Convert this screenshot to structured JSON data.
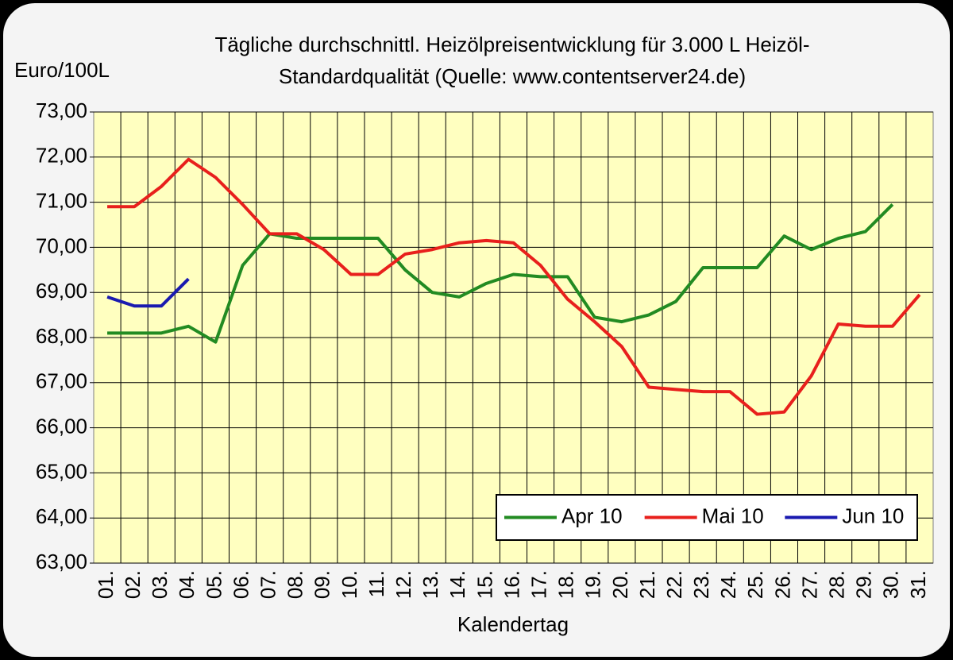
{
  "chart_data": {
    "type": "line",
    "title": [
      "Tägliche durchschnittl. Heizölpreisentwicklung für 3.000 L Heizöl-",
      "Standardqualität (Quelle: www.contentserver24.de)"
    ],
    "y_label": "Euro/100L",
    "x_label": "Kalendertag",
    "categories": [
      "01.",
      "02.",
      "03.",
      "04.",
      "05.",
      "06.",
      "07.",
      "08.",
      "09.",
      "10.",
      "11.",
      "12.",
      "13.",
      "14.",
      "15.",
      "16.",
      "17.",
      "18.",
      "19.",
      "20.",
      "21.",
      "22.",
      "23.",
      "24.",
      "25.",
      "26.",
      "27.",
      "28.",
      "29.",
      "30.",
      "31."
    ],
    "series": [
      {
        "name": "Apr 10",
        "color": "#228b22",
        "values": [
          68.1,
          68.1,
          68.1,
          68.25,
          67.9,
          69.6,
          70.3,
          70.2,
          70.2,
          70.2,
          70.2,
          69.5,
          69.0,
          68.9,
          69.2,
          69.4,
          69.35,
          69.35,
          68.45,
          68.35,
          68.5,
          68.8,
          69.55,
          69.55,
          69.55,
          70.25,
          69.95,
          70.2,
          70.35,
          70.95,
          null
        ]
      },
      {
        "name": "Mai 10",
        "color": "#e8201c",
        "values": [
          70.9,
          70.9,
          71.35,
          71.95,
          71.55,
          70.95,
          70.3,
          70.3,
          69.95,
          69.4,
          69.4,
          69.85,
          69.95,
          70.1,
          70.15,
          70.1,
          69.6,
          68.85,
          68.35,
          67.8,
          66.9,
          66.85,
          66.8,
          66.8,
          66.3,
          66.35,
          67.15,
          68.3,
          68.25,
          68.25,
          68.95
        ]
      },
      {
        "name": "Jun 10",
        "color": "#1a1ab0",
        "values": [
          68.9,
          68.7,
          68.7,
          69.3,
          null,
          null,
          null,
          null,
          null,
          null,
          null,
          null,
          null,
          null,
          null,
          null,
          null,
          null,
          null,
          null,
          null,
          null,
          null,
          null,
          null,
          null,
          null,
          null,
          null,
          null,
          null
        ]
      }
    ],
    "ylim": [
      63,
      73
    ],
    "yticks": [
      {
        "value": 63,
        "label": "63,00"
      },
      {
        "value": 64,
        "label": "64,00"
      },
      {
        "value": 65,
        "label": "65,00"
      },
      {
        "value": 66,
        "label": "66,00"
      },
      {
        "value": 67,
        "label": "67,00"
      },
      {
        "value": 68,
        "label": "68,00"
      },
      {
        "value": 69,
        "label": "69,00"
      },
      {
        "value": 70,
        "label": "70,00"
      },
      {
        "value": 71,
        "label": "71,00"
      },
      {
        "value": 72,
        "label": "72,00"
      },
      {
        "value": 73,
        "label": "73,00"
      }
    ],
    "grid": true,
    "legend_position": "bottom-right"
  }
}
